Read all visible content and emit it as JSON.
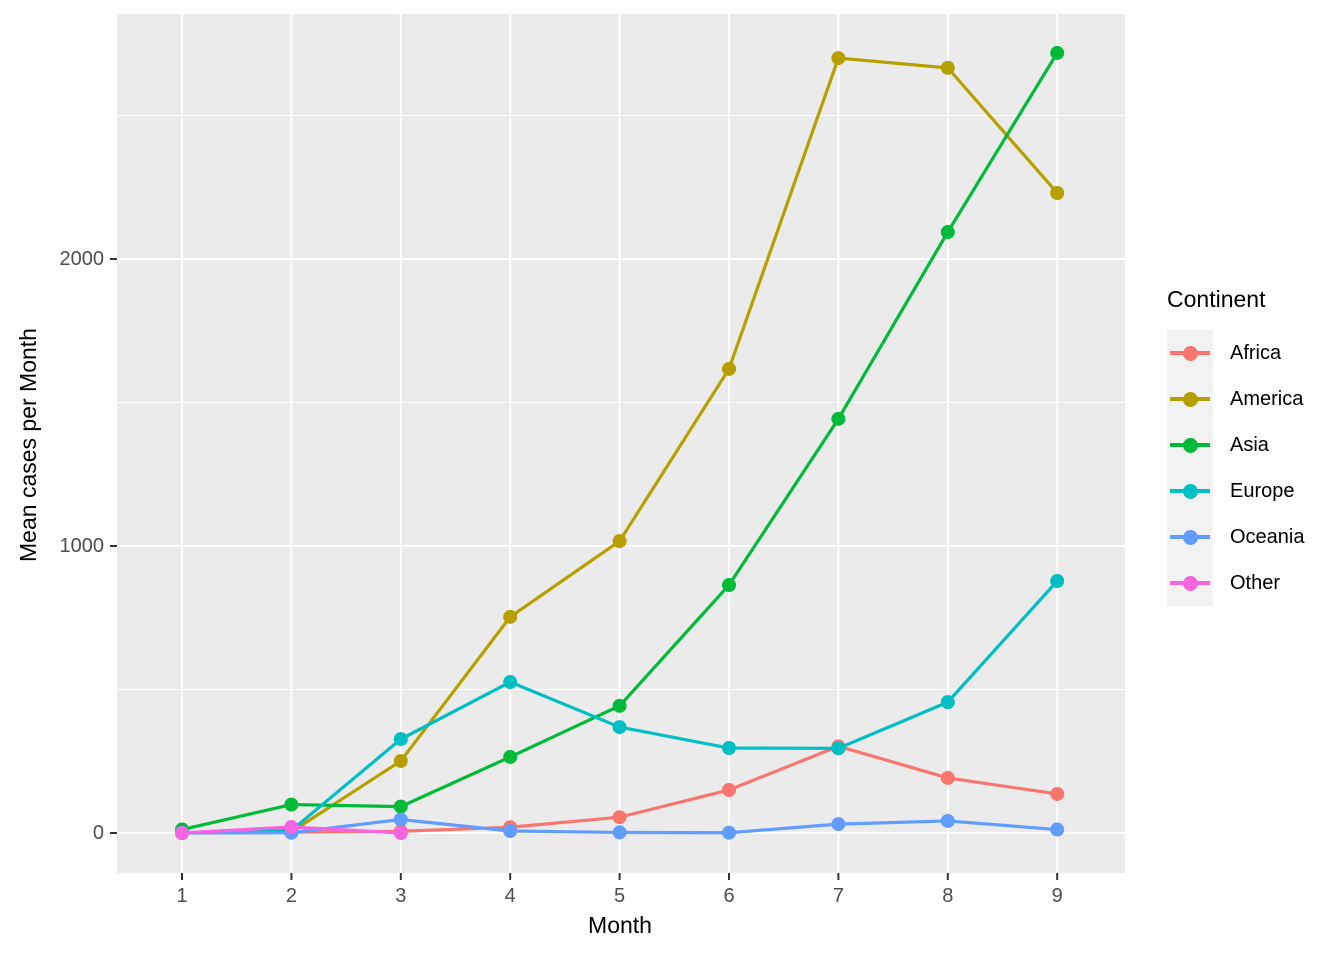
{
  "chart_data": {
    "type": "line",
    "title": "",
    "xlabel": "Month",
    "ylabel": "Mean cases per Month",
    "legend_title": "Continent",
    "legend_position": "right",
    "grid": true,
    "x": [
      1,
      2,
      3,
      4,
      5,
      6,
      7,
      8,
      9
    ],
    "x_breaks": [
      1,
      2,
      3,
      4,
      5,
      6,
      7,
      8,
      9
    ],
    "y_breaks": [
      0,
      1000,
      2000
    ],
    "y_minor_breaks": [
      500,
      1500,
      2500
    ],
    "y_axis_range": [
      -140,
      2855
    ],
    "style": {
      "panel_bg": "#EBEBEB",
      "grid_color": "#FFFFFF",
      "tick_color": "#333333",
      "tick_label_color": "#4D4D4D",
      "title_color": "#000000",
      "legend_key_bg": "#F2F2F2",
      "background": "#FFFFFF"
    },
    "series": [
      {
        "name": "Africa",
        "color": "#F8766D",
        "values": [
          0,
          3,
          6,
          20,
          55,
          150,
          302,
          192,
          136
        ]
      },
      {
        "name": "America",
        "color": "#B79F00",
        "values": [
          0,
          4,
          251,
          753,
          1017,
          1617,
          2700,
          2666,
          2230
        ]
      },
      {
        "name": "Asia",
        "color": "#00BA38",
        "values": [
          12,
          99,
          92,
          265,
          443,
          864,
          1443,
          2094,
          2718
        ]
      },
      {
        "name": "Europe",
        "color": "#00BFC4",
        "values": [
          1,
          9,
          327,
          526,
          369,
          296,
          295,
          456,
          878
        ]
      },
      {
        "name": "Oceania",
        "color": "#619CFF",
        "values": [
          0,
          1,
          47,
          7,
          2,
          1,
          31,
          42,
          12
        ]
      },
      {
        "name": "Other",
        "color": "#F564E3",
        "values": [
          0,
          21,
          0,
          null,
          null,
          null,
          null,
          null,
          null
        ]
      }
    ]
  }
}
